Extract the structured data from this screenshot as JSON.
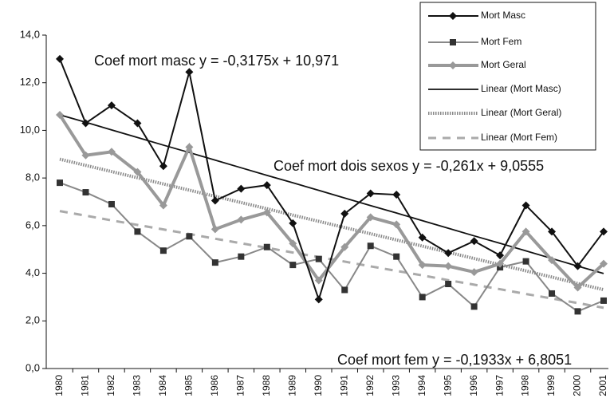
{
  "chart_data": {
    "type": "line",
    "categories": [
      "1980",
      "1981",
      "1982",
      "1983",
      "1984",
      "1985",
      "1986",
      "1987",
      "1988",
      "1989",
      "1990",
      "1991",
      "1992",
      "1993",
      "1994",
      "1995",
      "1996",
      "1997",
      "1998",
      "1999",
      "2000",
      "2001"
    ],
    "series": [
      {
        "name": "Mort Masc",
        "color": "#111111",
        "marker": "diamond",
        "values": [
          13.0,
          10.3,
          11.05,
          10.3,
          8.5,
          12.45,
          7.05,
          7.55,
          7.7,
          6.1,
          2.9,
          6.5,
          7.35,
          7.3,
          5.5,
          4.85,
          5.35,
          4.75,
          6.85,
          5.75,
          4.3,
          5.75
        ]
      },
      {
        "name": "Mort Fem",
        "color": "#888888",
        "marker": "square",
        "values": [
          7.8,
          7.4,
          6.9,
          5.75,
          4.95,
          5.55,
          4.45,
          4.7,
          5.1,
          4.35,
          4.6,
          3.3,
          5.15,
          4.7,
          3.0,
          3.55,
          2.6,
          4.25,
          4.5,
          3.15,
          2.4,
          2.85
        ]
      },
      {
        "name": "Mort Geral",
        "color": "#999999",
        "marker": "diamond",
        "values": [
          10.65,
          8.95,
          9.1,
          8.25,
          6.85,
          9.3,
          5.85,
          6.25,
          6.55,
          5.25,
          3.7,
          5.1,
          6.35,
          6.05,
          4.35,
          4.3,
          4.05,
          4.4,
          5.75,
          4.55,
          3.4,
          4.4
        ]
      },
      {
        "name": "Linear (Mort Masc)",
        "color": "#111111",
        "style": "solid",
        "values": [
          10.65,
          10.34,
          10.02,
          9.7,
          9.38,
          9.07,
          8.75,
          8.43,
          8.11,
          7.8,
          7.48,
          7.16,
          6.84,
          6.53,
          6.21,
          5.89,
          5.57,
          5.26,
          4.94,
          4.62,
          4.3,
          3.99
        ]
      },
      {
        "name": "Linear (Mort Geral)",
        "color": "#888888",
        "style": "dotted",
        "values": [
          8.79,
          8.53,
          8.27,
          8.01,
          7.75,
          7.49,
          7.23,
          6.97,
          6.71,
          6.44,
          6.18,
          5.92,
          5.66,
          5.4,
          5.14,
          4.88,
          4.62,
          4.36,
          4.1,
          3.84,
          3.57,
          3.31
        ]
      },
      {
        "name": "Linear (Mort Fem)",
        "color": "#aaaaaa",
        "style": "dashed",
        "values": [
          6.61,
          6.42,
          6.22,
          6.03,
          5.84,
          5.65,
          5.45,
          5.26,
          5.07,
          4.87,
          4.68,
          4.49,
          4.29,
          4.1,
          3.91,
          3.71,
          3.52,
          3.33,
          3.13,
          2.94,
          2.75,
          2.55
        ]
      }
    ],
    "annotations": [
      "Coef mort masc y = -0,3175x + 10,971",
      "Coef mort dois sexos y = -0,261x + 9,0555",
      "Coef mort fem y = -0,1933x + 6,8051"
    ],
    "ylim": [
      0,
      14
    ],
    "yticks": [
      {
        "value": 0,
        "label": "0,0"
      },
      {
        "value": 2,
        "label": "2,0"
      },
      {
        "value": 4,
        "label": "4,0"
      },
      {
        "value": 6,
        "label": "6,0"
      },
      {
        "value": 8,
        "label": "8,0"
      },
      {
        "value": 10,
        "label": "10,0"
      },
      {
        "value": 12,
        "label": "12,0"
      },
      {
        "value": 14,
        "label": "14,0"
      }
    ],
    "legend": "top-right"
  }
}
